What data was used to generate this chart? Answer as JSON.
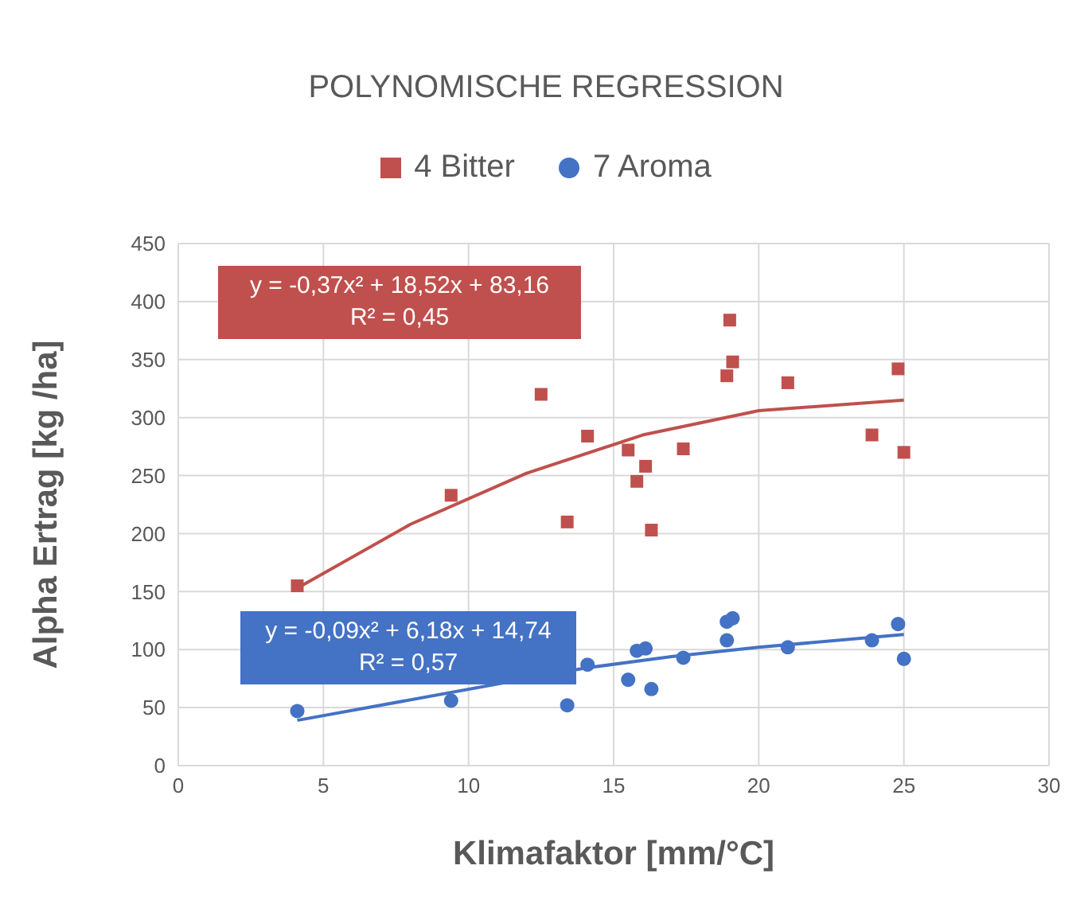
{
  "chart_data": {
    "type": "scatter",
    "title": "POLYNOMISCHE REGRESSION",
    "xlabel": "Klimafaktor [mm/°C]",
    "ylabel": "Alpha Ertrag [kg /ha]",
    "xlim": [
      0,
      30
    ],
    "xticks": [
      0,
      5,
      10,
      15,
      20,
      25,
      30
    ],
    "ylim": [
      0,
      450
    ],
    "yticks": [
      0,
      50,
      100,
      150,
      200,
      250,
      300,
      350,
      400,
      450
    ],
    "grid": true,
    "legend": "top",
    "annotations": [
      "y = -0,37x² + 18,52x + 83,16\nR² = 0,45",
      "y = -0,09x² + 6,18x + 14,74\nR² = 0,57"
    ],
    "series": [
      {
        "name": "4 Bitter",
        "color": "#c0504d",
        "marker": "square",
        "x": [
          4.1,
          9.4,
          12.5,
          13.4,
          14.1,
          15.5,
          15.8,
          16.1,
          16.3,
          17.4,
          18.9,
          19.0,
          19.1,
          21.0,
          23.9,
          24.8,
          25.0
        ],
        "values": [
          155,
          233,
          320,
          210,
          284,
          272,
          245,
          258,
          203,
          273,
          336,
          384,
          348,
          330,
          285,
          342,
          270
        ]
      },
      {
        "name": "7 Aroma",
        "color": "#4472c4",
        "marker": "circle",
        "x": [
          4.1,
          9.4,
          13.4,
          14.1,
          15.5,
          15.8,
          16.1,
          16.3,
          17.4,
          18.9,
          18.9,
          19.1,
          21.0,
          23.9,
          24.8,
          25.0
        ],
        "values": [
          47,
          56,
          52,
          87,
          74,
          99,
          101,
          66,
          93,
          108,
          124,
          127,
          102,
          108,
          122,
          92
        ]
      },
      {
        "type": "line",
        "color": "#c0504d",
        "marker": "none",
        "x": [
          4.1,
          8,
          12,
          16,
          20,
          25
        ],
        "values": [
          153,
          208,
          252,
          285,
          306,
          315
        ]
      },
      {
        "type": "line",
        "color": "#4472c4",
        "marker": "none",
        "x": [
          4.1,
          14,
          17,
          20,
          25
        ],
        "values": [
          39,
          84,
          94,
          102,
          113
        ]
      }
    ]
  }
}
